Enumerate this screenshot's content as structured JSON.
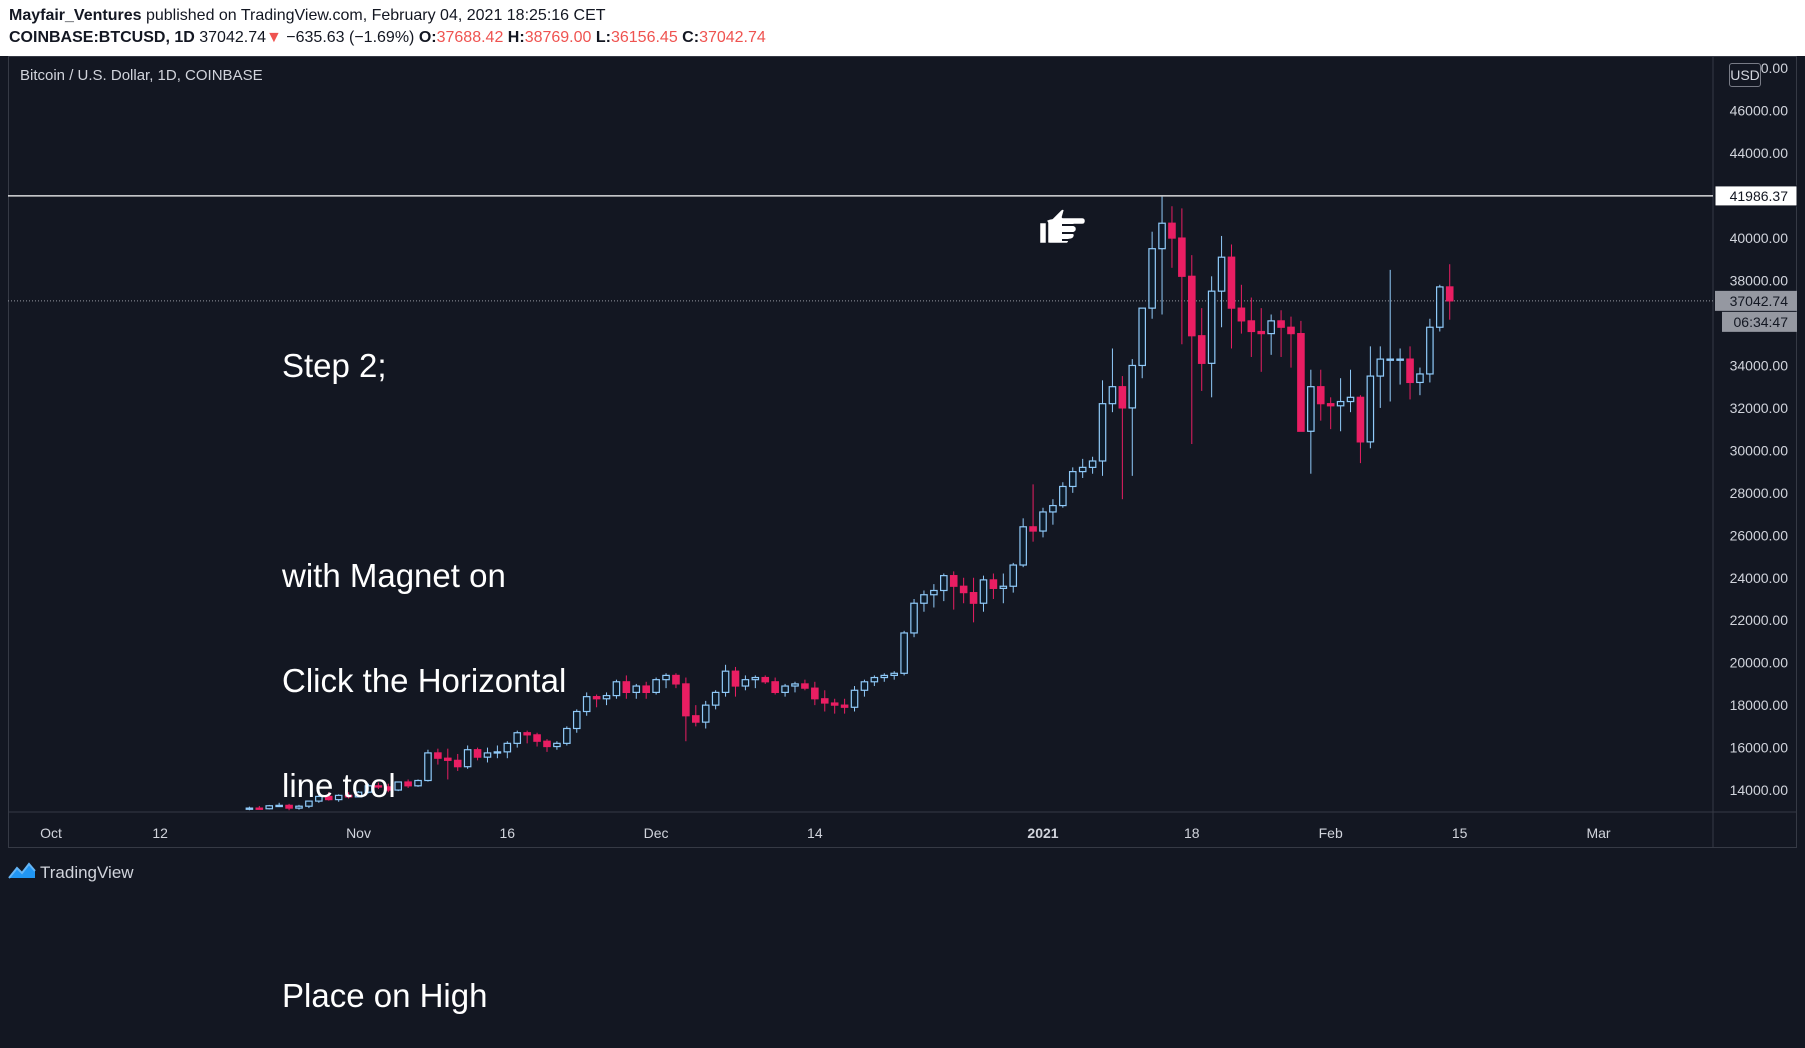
{
  "header": {
    "author": "Mayfair_Ventures",
    "published_text": " published on TradingView.com, February 04, 2021 18:25:16 CET",
    "symbol": "COINBASE:BTCUSD, 1D",
    "last_price": "37042.74",
    "change_arrow": "▼",
    "change": "−635.63 (−1.69%)",
    "o_label": "O:",
    "o_value": "37688.42",
    "h_label": "H:",
    "h_value": "38769.00",
    "l_label": "L:",
    "l_value": "36156.45",
    "c_label": "C:",
    "c_value": "37042.74"
  },
  "symbol_title": "Bitcoin / U.S. Dollar, 1D, COINBASE",
  "currency_badge": "USD",
  "annotation": {
    "lines": [
      "Step 2;",
      "",
      "with Magnet on",
      "Click the Horizontal",
      "line tool",
      "",
      "Place on High"
    ]
  },
  "icons": {
    "pointer": "hand-pointing-right-icon",
    "logo": "tradingview-logo-icon"
  },
  "footer": {
    "brand": "TradingView"
  },
  "colors": {
    "background": "#131722",
    "up_candle": "#90caf9",
    "down_candle": "#e91e63",
    "header_red": "#ef5350",
    "grid_border": "#363a45",
    "price_badge": "#9598a1"
  },
  "chart_data": {
    "type": "candlestick",
    "title": "Bitcoin / U.S. Dollar, 1D, COINBASE",
    "ylim": [
      13000,
      48000
    ],
    "y_ticks": [
      "14000.00",
      "16000.00",
      "18000.00",
      "20000.00",
      "22000.00",
      "24000.00",
      "26000.00",
      "28000.00",
      "30000.00",
      "32000.00",
      "34000.00",
      "36000.00",
      "38000.00",
      "40000.00",
      "44000.00",
      "46000.00"
    ],
    "x_ticks": [
      {
        "label": "Oct",
        "day": -100
      },
      {
        "label": "12",
        "day": -89
      },
      {
        "label": "Nov",
        "day": -69
      },
      {
        "label": "16",
        "day": -54
      },
      {
        "label": "Dec",
        "day": -39
      },
      {
        "label": "14",
        "day": -23
      },
      {
        "label": "2021",
        "day": 0,
        "bold": true
      },
      {
        "label": "18",
        "day": 15
      },
      {
        "label": "Feb",
        "day": 29
      },
      {
        "label": "15",
        "day": 42
      },
      {
        "label": "Mar",
        "day": 56
      }
    ],
    "horizontal_line": {
      "value": 41986.37,
      "label": "41986.37"
    },
    "last_price_line": {
      "value": 37042.74,
      "label": "37042.74",
      "countdown": "06:34:47"
    },
    "candles_start_day": -80,
    "candles": [
      [
        13100,
        13220,
        13050,
        13150
      ],
      [
        13150,
        13250,
        13080,
        13120
      ],
      [
        13120,
        13300,
        13090,
        13260
      ],
      [
        13260,
        13400,
        13200,
        13280
      ],
      [
        13280,
        13350,
        13050,
        13150
      ],
      [
        13150,
        13300,
        13080,
        13240
      ],
      [
        13240,
        13500,
        13150,
        13480
      ],
      [
        13480,
        13800,
        13400,
        13700
      ],
      [
        13700,
        13900,
        13500,
        13550
      ],
      [
        13550,
        13800,
        13450,
        13750
      ],
      [
        13750,
        13900,
        13600,
        13680
      ],
      [
        13680,
        13950,
        13650,
        13900
      ],
      [
        13900,
        14300,
        13850,
        14200
      ],
      [
        14200,
        14350,
        14050,
        14150
      ],
      [
        14150,
        14300,
        13900,
        14000
      ],
      [
        14000,
        14400,
        13950,
        14380
      ],
      [
        14380,
        14500,
        14100,
        14200
      ],
      [
        14200,
        14500,
        14150,
        14450
      ],
      [
        14450,
        15900,
        14400,
        15750
      ],
      [
        15750,
        15950,
        15200,
        15500
      ],
      [
        15500,
        15950,
        14500,
        15400
      ],
      [
        15400,
        15700,
        14900,
        15100
      ],
      [
        15100,
        16100,
        15000,
        15900
      ],
      [
        15900,
        16000,
        15400,
        15550
      ],
      [
        15550,
        16000,
        15300,
        15750
      ],
      [
        15750,
        16100,
        15500,
        15800
      ],
      [
        15800,
        16300,
        15500,
        16200
      ],
      [
        16200,
        16800,
        16000,
        16700
      ],
      [
        16700,
        16800,
        16200,
        16600
      ],
      [
        16600,
        16700,
        16050,
        16300
      ],
      [
        16300,
        16400,
        15800,
        16050
      ],
      [
        16050,
        16300,
        15900,
        16200
      ],
      [
        16200,
        17000,
        16100,
        16900
      ],
      [
        16900,
        17800,
        16700,
        17700
      ],
      [
        17700,
        18600,
        17500,
        18400
      ],
      [
        18400,
        18500,
        17900,
        18300
      ],
      [
        18300,
        18600,
        18000,
        18450
      ],
      [
        18450,
        19200,
        18300,
        19100
      ],
      [
        19100,
        19400,
        18300,
        18600
      ],
      [
        18600,
        19000,
        18300,
        18900
      ],
      [
        18900,
        19100,
        18300,
        18600
      ],
      [
        18600,
        19300,
        18500,
        19200
      ],
      [
        19200,
        19500,
        18800,
        19400
      ],
      [
        19400,
        19500,
        18800,
        19000
      ],
      [
        19000,
        19300,
        16300,
        17500
      ],
      [
        17500,
        18000,
        17000,
        17200
      ],
      [
        17200,
        18200,
        16900,
        18000
      ],
      [
        18000,
        18700,
        17800,
        18600
      ],
      [
        18600,
        19900,
        18400,
        19600
      ],
      [
        19600,
        19800,
        18400,
        18900
      ],
      [
        18900,
        19400,
        18700,
        19200
      ],
      [
        19200,
        19400,
        18800,
        19300
      ],
      [
        19300,
        19400,
        19000,
        19100
      ],
      [
        19100,
        19300,
        18500,
        18600
      ],
      [
        18600,
        19000,
        18400,
        18900
      ],
      [
        18900,
        19100,
        18600,
        19000
      ],
      [
        19000,
        19200,
        18700,
        18800
      ],
      [
        18800,
        19100,
        18000,
        18300
      ],
      [
        18300,
        18700,
        17700,
        18100
      ],
      [
        18100,
        18300,
        17600,
        18000
      ],
      [
        18000,
        18300,
        17600,
        17900
      ],
      [
        17900,
        18900,
        17700,
        18700
      ],
      [
        18700,
        19200,
        18400,
        19100
      ],
      [
        19100,
        19400,
        18900,
        19300
      ],
      [
        19300,
        19500,
        19100,
        19400
      ],
      [
        19400,
        19600,
        19200,
        19500
      ],
      [
        19500,
        21500,
        19400,
        21400
      ],
      [
        21400,
        23000,
        21200,
        22800
      ],
      [
        22800,
        23400,
        22400,
        23200
      ],
      [
        23200,
        23700,
        22600,
        23400
      ],
      [
        23400,
        24200,
        22900,
        24100
      ],
      [
        24100,
        24300,
        22500,
        23600
      ],
      [
        23600,
        24000,
        22800,
        23300
      ],
      [
        23300,
        24000,
        21900,
        22800
      ],
      [
        22800,
        24100,
        22400,
        23900
      ],
      [
        23900,
        24200,
        23000,
        23500
      ],
      [
        23500,
        24200,
        22800,
        23600
      ],
      [
        23600,
        24700,
        23300,
        24600
      ],
      [
        24600,
        26800,
        24500,
        26400
      ],
      [
        26400,
        28400,
        25700,
        26200
      ],
      [
        26200,
        27300,
        25900,
        27100
      ],
      [
        27100,
        27700,
        26500,
        27400
      ],
      [
        27400,
        28500,
        27300,
        28300
      ],
      [
        28300,
        29200,
        28000,
        29000
      ],
      [
        29000,
        29600,
        28700,
        29200
      ],
      [
        29200,
        29700,
        28900,
        29500
      ],
      [
        29500,
        33300,
        28800,
        32200
      ],
      [
        32200,
        34800,
        31800,
        33000
      ],
      [
        33000,
        33500,
        27700,
        32000
      ],
      [
        32000,
        34300,
        28800,
        34000
      ],
      [
        34000,
        36600,
        33400,
        36700
      ],
      [
        36700,
        40300,
        36200,
        39500
      ],
      [
        39500,
        41950,
        36400,
        40700
      ],
      [
        40700,
        41500,
        38600,
        40000
      ],
      [
        40000,
        41400,
        35000,
        38200
      ],
      [
        38200,
        39200,
        30300,
        35400
      ],
      [
        35400,
        36700,
        32800,
        34100
      ],
      [
        34100,
        38200,
        32500,
        37500
      ],
      [
        37500,
        40100,
        35800,
        39100
      ],
      [
        39100,
        39700,
        34800,
        36700
      ],
      [
        36700,
        37800,
        35500,
        36100
      ],
      [
        36100,
        37200,
        34400,
        35600
      ],
      [
        35600,
        36700,
        33700,
        35500
      ],
      [
        35500,
        36400,
        34500,
        36100
      ],
      [
        36100,
        36600,
        34400,
        35800
      ],
      [
        35800,
        36300,
        33900,
        35500
      ],
      [
        35500,
        36100,
        30900,
        30900
      ],
      [
        30900,
        33800,
        28900,
        33000
      ],
      [
        33000,
        33800,
        31400,
        32200
      ],
      [
        32200,
        32500,
        31000,
        32100
      ],
      [
        32100,
        33400,
        30900,
        32300
      ],
      [
        32300,
        33800,
        31800,
        32500
      ],
      [
        32500,
        32600,
        29400,
        30400
      ],
      [
        30400,
        34900,
        30100,
        33500
      ],
      [
        33500,
        34900,
        32000,
        34300
      ],
      [
        34300,
        38500,
        32300,
        34300
      ],
      [
        34300,
        34800,
        33100,
        34300
      ],
      [
        34300,
        34900,
        32400,
        33200
      ],
      [
        33200,
        33900,
        32600,
        33600
      ],
      [
        33600,
        36200,
        33200,
        35800
      ],
      [
        35800,
        37800,
        35600,
        37700
      ],
      [
        37700,
        38769,
        36156,
        37042
      ]
    ]
  }
}
